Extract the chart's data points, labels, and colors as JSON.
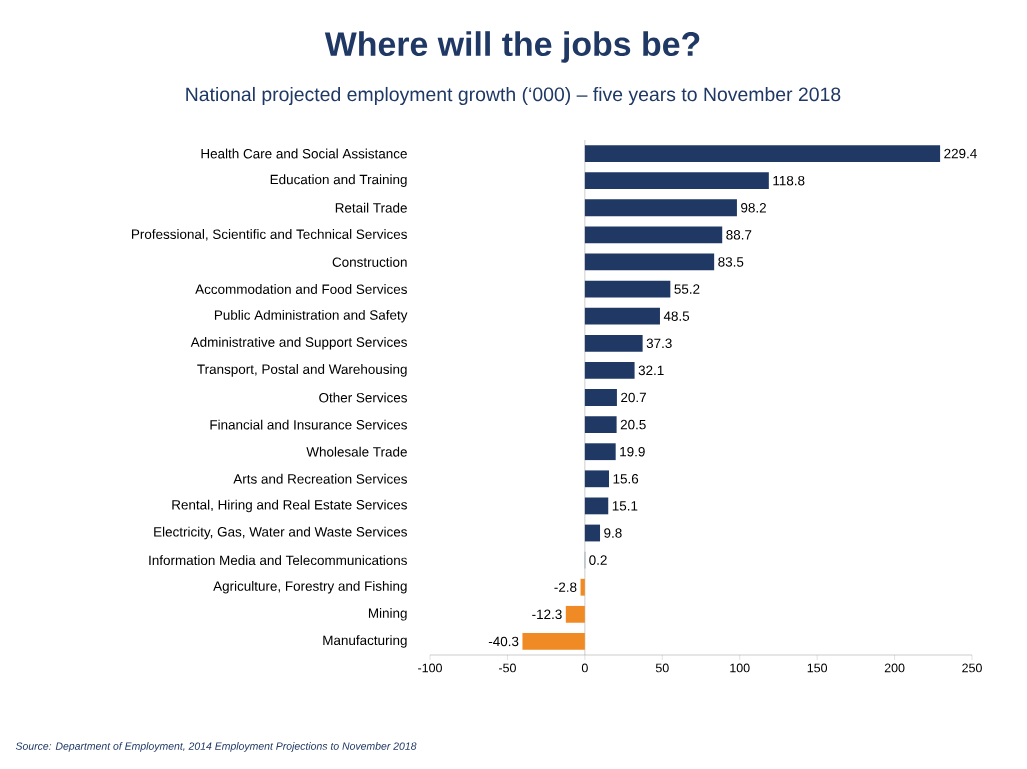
{
  "chart_data": {
    "type": "bar",
    "orientation": "horizontal",
    "title": "Where will the jobs be?",
    "subtitle": "National projected employment growth (‘000) – five years to November 2018",
    "categories": [
      "Health Care and Social Assistance",
      "Education and Training",
      "Retail Trade",
      "Professional, Scientific and Technical Services",
      "Construction",
      "Accommodation and Food Services",
      "Public Administration and Safety",
      "Administrative and Support Services",
      "Transport, Postal and Warehousing",
      "Other Services",
      "Financial and Insurance Services",
      "Wholesale Trade",
      "Arts and Recreation Services",
      "Rental, Hiring and Real Estate Services",
      "Electricity, Gas, Water and Waste Services",
      "Information Media and Telecommunications",
      "Agriculture, Forestry and Fishing",
      "Mining",
      "Manufacturing"
    ],
    "values": [
      229.4,
      118.8,
      98.2,
      88.7,
      83.5,
      55.2,
      48.5,
      37.3,
      32.1,
      20.7,
      20.5,
      19.9,
      15.6,
      15.1,
      9.8,
      0.2,
      -2.8,
      -12.3,
      -40.3
    ],
    "colors": [
      "#1f3864",
      "#1f3864",
      "#1f3864",
      "#1f3864",
      "#1f3864",
      "#1f3864",
      "#1f3864",
      "#1f3864",
      "#1f3864",
      "#1f3864",
      "#1f3864",
      "#1f3864",
      "#1f3864",
      "#1f3864",
      "#1f3864",
      "#1f3864",
      "#f08a24",
      "#f08a24",
      "#f08a24"
    ],
    "data_labels": true,
    "xlim": [
      -100,
      250
    ],
    "xticks": [
      -100,
      -50,
      0,
      50,
      100,
      150,
      200,
      250
    ],
    "annotations": [
      "Source: Department of Employment, 2014 Employment Projections to November 2018"
    ]
  }
}
